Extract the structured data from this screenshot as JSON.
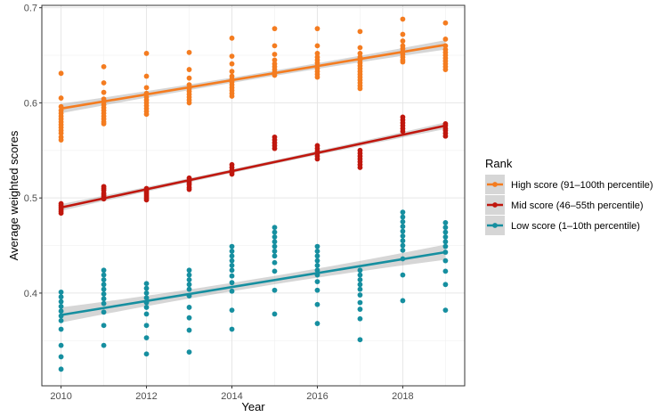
{
  "chart_data": {
    "type": "scatter",
    "xlabel": "Year",
    "ylabel": "Average weighted scores",
    "xlim": [
      2009.55,
      2019.45
    ],
    "ylim": [
      0.3025,
      0.7025
    ],
    "x_ticks": [
      2010,
      2012,
      2014,
      2016,
      2018
    ],
    "y_ticks": [
      0.4,
      0.5,
      0.6,
      0.7
    ],
    "y_minor_ticks": [
      0.35,
      0.45,
      0.55,
      0.65
    ],
    "x_minor_ticks": [
      2011,
      2013,
      2015,
      2017,
      2019
    ],
    "grid": true,
    "legend": {
      "title": "Rank",
      "placement": "right"
    },
    "series": [
      {
        "name": "High score (91–100th percentile)",
        "color": "#F47C20",
        "trend": {
          "start": [
            2010,
            0.594
          ],
          "end": [
            2019,
            0.661
          ]
        },
        "points": [
          {
            "x": 2010,
            "y": [
              0.631,
              0.605,
              0.596,
              0.592,
              0.589,
              0.586,
              0.583,
              0.58,
              0.577,
              0.574,
              0.571,
              0.568,
              0.564,
              0.561
            ]
          },
          {
            "x": 2011,
            "y": [
              0.638,
              0.621,
              0.611,
              0.604,
              0.601,
              0.598,
              0.595,
              0.592,
              0.589,
              0.586,
              0.583,
              0.58,
              0.578
            ]
          },
          {
            "x": 2012,
            "y": [
              0.652,
              0.628,
              0.616,
              0.61,
              0.606,
              0.603,
              0.6,
              0.597,
              0.594,
              0.591,
              0.588
            ]
          },
          {
            "x": 2013,
            "y": [
              0.653,
              0.635,
              0.626,
              0.619,
              0.615,
              0.612,
              0.609,
              0.606,
              0.603,
              0.6
            ]
          },
          {
            "x": 2014,
            "y": [
              0.668,
              0.649,
              0.641,
              0.633,
              0.628,
              0.625,
              0.622,
              0.619,
              0.616,
              0.613,
              0.61,
              0.607
            ]
          },
          {
            "x": 2015,
            "y": [
              0.678,
              0.66,
              0.651,
              0.645,
              0.641,
              0.638,
              0.635,
              0.632,
              0.629
            ]
          },
          {
            "x": 2016,
            "y": [
              0.678,
              0.66,
              0.652,
              0.648,
              0.645,
              0.642,
              0.639,
              0.636,
              0.633,
              0.63,
              0.627
            ]
          },
          {
            "x": 2017,
            "y": [
              0.675,
              0.658,
              0.652,
              0.648,
              0.645,
              0.642,
              0.639,
              0.636,
              0.633,
              0.63,
              0.627,
              0.624,
              0.621,
              0.618,
              0.615
            ]
          },
          {
            "x": 2018,
            "y": [
              0.688,
              0.672,
              0.665,
              0.66,
              0.657,
              0.654,
              0.651,
              0.648,
              0.645,
              0.643
            ]
          },
          {
            "x": 2019,
            "y": [
              0.684,
              0.667,
              0.66,
              0.656,
              0.653,
              0.65,
              0.647,
              0.644,
              0.641,
              0.638,
              0.635
            ]
          }
        ]
      },
      {
        "name": "Mid score (46–55th percentile)",
        "color": "#C0170E",
        "trend": {
          "start": [
            2010,
            0.49
          ],
          "end": [
            2019,
            0.576
          ]
        },
        "points": [
          {
            "x": 2010,
            "y": [
              0.494,
              0.492,
              0.49,
              0.488,
              0.486,
              0.484
            ]
          },
          {
            "x": 2011,
            "y": [
              0.512,
              0.51,
              0.508,
              0.505,
              0.503,
              0.501,
              0.499
            ]
          },
          {
            "x": 2012,
            "y": [
              0.51,
              0.508,
              0.506,
              0.504,
              0.502,
              0.5,
              0.498
            ]
          },
          {
            "x": 2013,
            "y": [
              0.521,
              0.518,
              0.516,
              0.514,
              0.511,
              0.509
            ]
          },
          {
            "x": 2014,
            "y": [
              0.535,
              0.532,
              0.529,
              0.527,
              0.525
            ]
          },
          {
            "x": 2015,
            "y": [
              0.564,
              0.561,
              0.558,
              0.555,
              0.552
            ]
          },
          {
            "x": 2016,
            "y": [
              0.555,
              0.552,
              0.549,
              0.547,
              0.544,
              0.541
            ]
          },
          {
            "x": 2017,
            "y": [
              0.55,
              0.547,
              0.544,
              0.541,
              0.538,
              0.535,
              0.532
            ]
          },
          {
            "x": 2018,
            "y": [
              0.585,
              0.582,
              0.579,
              0.576,
              0.573,
              0.57
            ]
          },
          {
            "x": 2019,
            "y": [
              0.578,
              0.576,
              0.573,
              0.571,
              0.568,
              0.565
            ]
          }
        ]
      },
      {
        "name": "Low score (1–10th percentile)",
        "color": "#168FA0",
        "trend": {
          "start": [
            2010,
            0.377
          ],
          "end": [
            2019,
            0.443
          ]
        },
        "points": [
          {
            "x": 2010,
            "y": [
              0.401,
              0.396,
              0.391,
              0.386,
              0.381,
              0.376,
              0.371,
              0.362,
              0.345,
              0.333,
              0.32
            ]
          },
          {
            "x": 2011,
            "y": [
              0.424,
              0.419,
              0.414,
              0.409,
              0.404,
              0.399,
              0.394,
              0.389,
              0.38,
              0.366,
              0.345
            ]
          },
          {
            "x": 2012,
            "y": [
              0.41,
              0.405,
              0.4,
              0.395,
              0.39,
              0.385,
              0.378,
              0.366,
              0.353,
              0.336
            ]
          },
          {
            "x": 2013,
            "y": [
              0.424,
              0.419,
              0.414,
              0.409,
              0.404,
              0.397,
              0.385,
              0.374,
              0.361,
              0.338
            ]
          },
          {
            "x": 2014,
            "y": [
              0.449,
              0.444,
              0.439,
              0.434,
              0.429,
              0.424,
              0.418,
              0.411,
              0.402,
              0.382,
              0.362
            ]
          },
          {
            "x": 2015,
            "y": [
              0.469,
              0.464,
              0.459,
              0.454,
              0.449,
              0.444,
              0.439,
              0.432,
              0.423,
              0.403,
              0.378
            ]
          },
          {
            "x": 2016,
            "y": [
              0.449,
              0.444,
              0.439,
              0.434,
              0.429,
              0.424,
              0.419,
              0.412,
              0.403,
              0.388,
              0.368
            ]
          },
          {
            "x": 2017,
            "y": [
              0.424,
              0.419,
              0.414,
              0.409,
              0.404,
              0.398,
              0.39,
              0.383,
              0.373,
              0.351
            ]
          },
          {
            "x": 2018,
            "y": [
              0.485,
              0.48,
              0.475,
              0.47,
              0.465,
              0.46,
              0.455,
              0.45,
              0.445,
              0.436,
              0.419,
              0.392
            ]
          },
          {
            "x": 2019,
            "y": [
              0.474,
              0.469,
              0.464,
              0.459,
              0.454,
              0.449,
              0.443,
              0.434,
              0.423,
              0.409,
              0.382
            ]
          }
        ]
      }
    ]
  }
}
